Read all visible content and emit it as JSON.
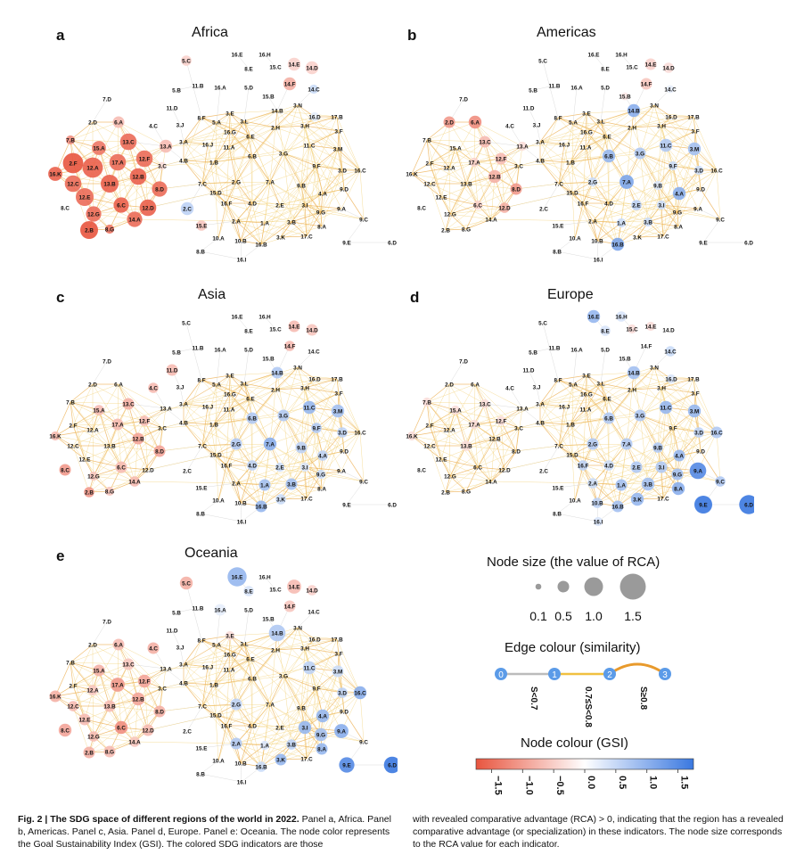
{
  "panels": [
    {
      "letter": "a",
      "title": "Africa"
    },
    {
      "letter": "b",
      "title": "Americas"
    },
    {
      "letter": "c",
      "title": "Asia"
    },
    {
      "letter": "d",
      "title": "Europe"
    },
    {
      "letter": "e",
      "title": "Oceania"
    }
  ],
  "nodes": [
    "5.C",
    "16.E",
    "16.H",
    "8.E",
    "15.C",
    "14.E",
    "14.D",
    "14.F",
    "14.C",
    "11.B",
    "16.A",
    "5.D",
    "15.B",
    "5.B",
    "7.D",
    "11.D",
    "14.B",
    "3.N",
    "2.D",
    "6.A",
    "4.C",
    "3.J",
    "8.F",
    "5.A",
    "3.E",
    "3.L",
    "16.D",
    "17.B",
    "16.G",
    "6.E",
    "2.H",
    "3.H",
    "3.F",
    "7.B",
    "15.A",
    "13.C",
    "13.A",
    "3.A",
    "16.J",
    "11.A",
    "11.C",
    "3.M",
    "2.F",
    "17.A",
    "12.F",
    "3.C",
    "4.B",
    "1.B",
    "6.B",
    "3.G",
    "16.K",
    "12.A",
    "12.B",
    "9.F",
    "3.D",
    "16.C",
    "13.B",
    "8.D",
    "7.C",
    "2.G",
    "7.A",
    "9.B",
    "12.C",
    "12.E",
    "15.D",
    "9.D",
    "4.A",
    "6.C",
    "12.D",
    "16.F",
    "4.D",
    "2.E",
    "3.I",
    "9.G",
    "2.C",
    "12.G",
    "14.A",
    "2.A",
    "1.A",
    "3.B",
    "9.A",
    "9.C",
    "2.B",
    "8.G",
    "15.E",
    "8.A",
    "10.A",
    "10.B",
    "16.B",
    "3.K",
    "17.C",
    "6.D",
    "9.E",
    "8.B",
    "16.I"
  ],
  "legend": {
    "size_title": "Node size (the value of RCA)",
    "size_labels": [
      "0.1",
      "0.5",
      "1.0",
      "1.5"
    ],
    "size_values": [
      0.1,
      0.5,
      1.0,
      1.5
    ],
    "edge_title": "Edge colour (similarity)",
    "edge_points": [
      "0",
      "1",
      "2",
      "3"
    ],
    "edge_labels": [
      "S<0.7",
      "0.7≤S<0.8",
      "S≥0.8"
    ],
    "edge_colors": [
      "#bbbbbb",
      "#f0c040",
      "#e89a2c"
    ],
    "colour_title": "Node colour (GSI)",
    "colour_ticks": [
      "−1.5",
      "−1.0",
      "−0.5",
      "0.0",
      "0.5",
      "1.0",
      "1.5"
    ],
    "colour_values": [
      -1.5,
      -1.0,
      -0.5,
      0.0,
      0.5,
      1.0,
      1.5
    ],
    "colour_low": "#e8553f",
    "colour_mid": "#ffffff",
    "colour_high": "#3a78e0"
  },
  "caption": {
    "left_bold": "Fig. 2 | The SDG space of different regions of the world in 2022.",
    "left_text": " Panel a, Africa. Panel b, Americas. Panel c, Asia. Panel d, Europe. Panel e: Oceania. The node color represents the Goal Sustainability Index (GSI). The colored SDG indicators are those",
    "right_text": "with revealed comparative advantage (RCA) > 0, indicating that the region has a revealed comparative advantage (or specialization) in these indicators. The node size corresponds to the RCA value for each indicator."
  }
}
